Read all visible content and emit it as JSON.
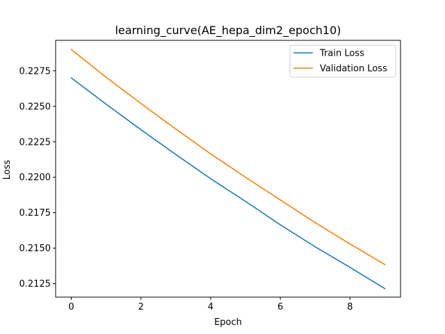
{
  "chart_data": {
    "type": "line",
    "title": "learning_curve(AE_hepa_dim2_epoch10)",
    "xlabel": "Epoch",
    "ylabel": "Loss",
    "x": [
      0,
      1,
      2,
      3,
      4,
      5,
      6,
      7,
      8,
      9
    ],
    "xlim": [
      -0.45,
      9.45
    ],
    "ylim": [
      0.21155,
      0.22965
    ],
    "xticks": [
      0,
      2,
      4,
      6,
      8
    ],
    "xtick_labels": [
      "0",
      "2",
      "4",
      "6",
      "8"
    ],
    "yticks": [
      0.2125,
      0.215,
      0.2175,
      0.22,
      0.2225,
      0.225,
      0.2275
    ],
    "ytick_labels": [
      "0.2125",
      "0.2150",
      "0.2175",
      "0.2200",
      "0.2225",
      "0.2250",
      "0.2275"
    ],
    "grid": false,
    "legend_position": "top-right",
    "series": [
      {
        "name": "Train Loss",
        "color": "#1f77b4",
        "values": [
          0.227,
          0.22515,
          0.22335,
          0.2216,
          0.2199,
          0.2183,
          0.21665,
          0.2151,
          0.21365,
          0.21215
        ]
      },
      {
        "name": "Validation Loss",
        "color": "#ff7f0e",
        "values": [
          0.229,
          0.22705,
          0.2252,
          0.2234,
          0.22165,
          0.22,
          0.2184,
          0.2168,
          0.2153,
          0.21385
        ]
      }
    ]
  }
}
